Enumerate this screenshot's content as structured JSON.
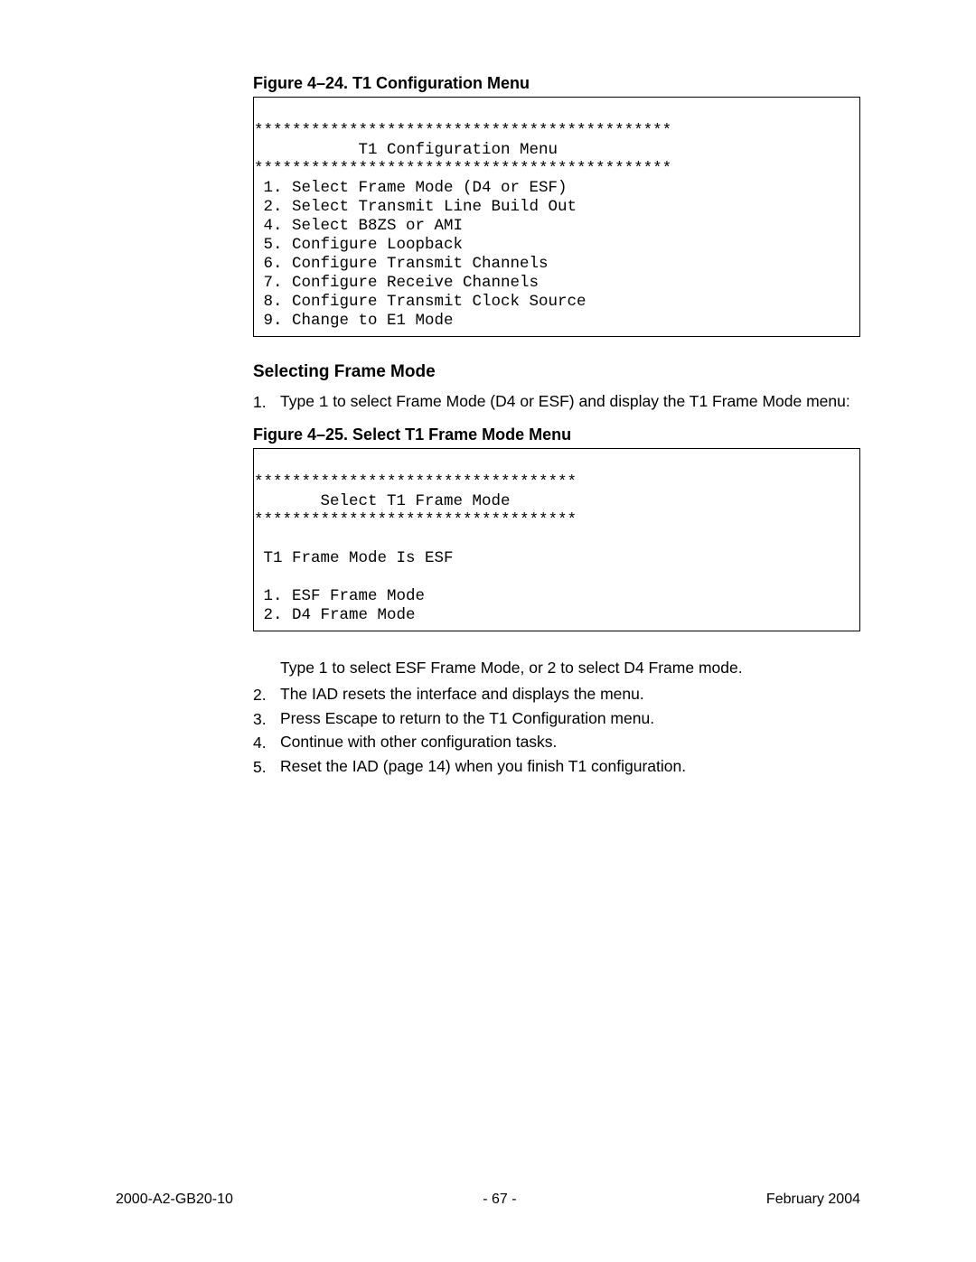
{
  "figure24": {
    "caption": "Figure 4–24.  T1 Configuration Menu",
    "stars_top": "********************************************",
    "title": "           T1 Configuration Menu",
    "stars_bottom": "********************************************",
    "items": [
      " 1. Select Frame Mode (D4 or ESF)",
      " 2. Select Transmit Line Build Out",
      " 4. Select B8ZS or AMI",
      " 5. Configure Loopback",
      " 6. Configure Transmit Channels",
      " 7. Configure Receive Channels",
      " 8. Configure Transmit Clock Source",
      " 9. Change to E1 Mode"
    ]
  },
  "section": {
    "heading": "Selecting Frame Mode",
    "step1_num": "1.",
    "step1_a": "Type ",
    "step1_code": "1",
    "step1_b": " to select Frame Mode (D4 or ESF) and display the T1 Frame Mode menu:"
  },
  "figure25": {
    "caption": "Figure 4–25.  Select T1 Frame Mode Menu",
    "stars_top": "**********************************",
    "title": "       Select T1 Frame Mode",
    "stars_bottom": "**********************************",
    "status": " T1 Frame Mode Is ESF",
    "items": [
      " 1. ESF Frame Mode",
      " 2. D4 Frame Mode"
    ]
  },
  "after": {
    "indent_text": "Type 1 to select ESF Frame Mode, or 2 to select D4 Frame mode.",
    "step2_num": "2.",
    "step2": "The IAD resets the interface and displays the menu.",
    "step3_num": "3.",
    "step3": "Press Escape to return to the T1 Configuration menu.",
    "step4_num": "4.",
    "step4": "Continue with other configuration tasks.",
    "step5_num": "5.",
    "step5": "Reset the IAD (page 14) when you finish T1 configuration."
  },
  "footer": {
    "left": "2000-A2-GB20-10",
    "center": "- 67 -",
    "right": "February 2004"
  }
}
